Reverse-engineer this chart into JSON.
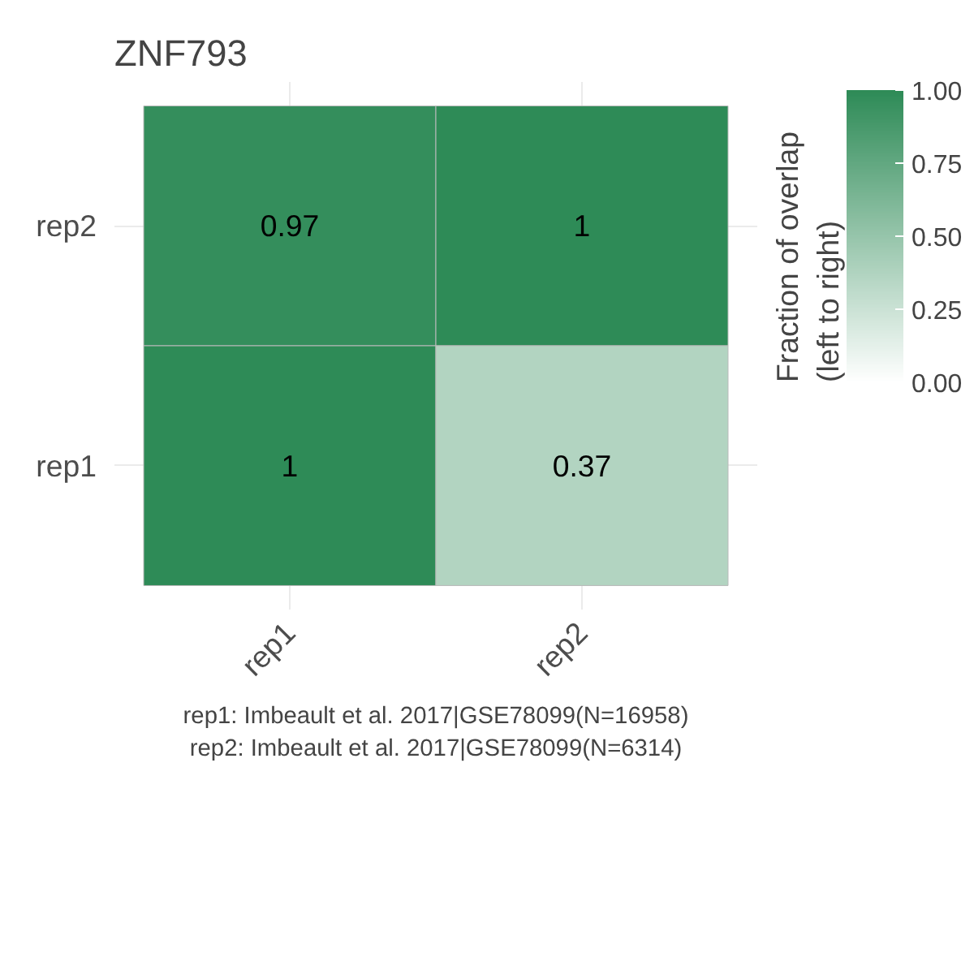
{
  "chart_data": {
    "type": "heatmap",
    "title": "ZNF793",
    "clabel": "Fraction of overlap (left to right)",
    "categories": [
      "rep1",
      "rep2"
    ],
    "y_categories": [
      "rep2",
      "rep1"
    ],
    "cells": [
      [
        0.97,
        1
      ],
      [
        1,
        0.37
      ]
    ],
    "clim": [
      0,
      1
    ],
    "cticks": [
      {
        "value": 0,
        "label": "0.00"
      },
      {
        "value": 0.25,
        "label": "0.25"
      },
      {
        "value": 0.5,
        "label": "0.50"
      },
      {
        "value": 0.75,
        "label": "0.75"
      },
      {
        "value": 1,
        "label": "1.00"
      }
    ],
    "colors": [
      "#ffffff",
      "#2e8b57"
    ],
    "data_labels": true,
    "grid": true,
    "annotations": [
      "rep1: Imbeault et al. 2017|GSE78099(N=16958)",
      "rep2: Imbeault et al. 2017|GSE78099(N=6314)"
    ]
  }
}
